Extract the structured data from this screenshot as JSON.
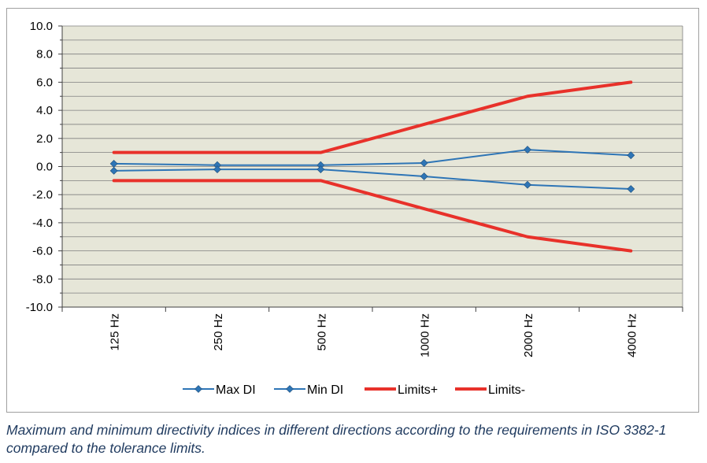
{
  "chart_data": {
    "type": "line",
    "categories": [
      "125 Hz",
      "250 Hz",
      "500 Hz",
      "1000 Hz",
      "2000 Hz",
      "4000 Hz"
    ],
    "series": [
      {
        "name": "Max DI",
        "values": [
          0.2,
          0.1,
          0.1,
          0.25,
          1.2,
          0.8
        ],
        "color": "#2e75b6",
        "marker": "diamond"
      },
      {
        "name": "Min DI",
        "values": [
          -0.3,
          -0.2,
          -0.2,
          -0.7,
          -1.3,
          -1.6
        ],
        "color": "#2e75b6",
        "marker": "diamond"
      },
      {
        "name": "Limits+",
        "values": [
          1.0,
          1.0,
          1.0,
          3.0,
          5.0,
          6.0
        ],
        "color": "#e8312a",
        "marker": "none"
      },
      {
        "name": "Limits-",
        "values": [
          -1.0,
          -1.0,
          -1.0,
          -3.0,
          -5.0,
          -6.0
        ],
        "color": "#e8312a",
        "marker": "none"
      }
    ],
    "ylim": [
      -10,
      10
    ],
    "y_ticks": [
      "10.0",
      "8.0",
      "6.0",
      "4.0",
      "2.0",
      "0.0",
      "-2.0",
      "-4.0",
      "-6.0",
      "-8.0",
      "-10.0"
    ],
    "grid": true,
    "plot_background": "#e6e6d8",
    "legend_position": "bottom",
    "xlabel": "",
    "ylabel": "",
    "title": ""
  },
  "caption": "Maximum and minimum directivity indices in different directions according to the requirements in ISO 3382-1 compared to the tolerance limits."
}
